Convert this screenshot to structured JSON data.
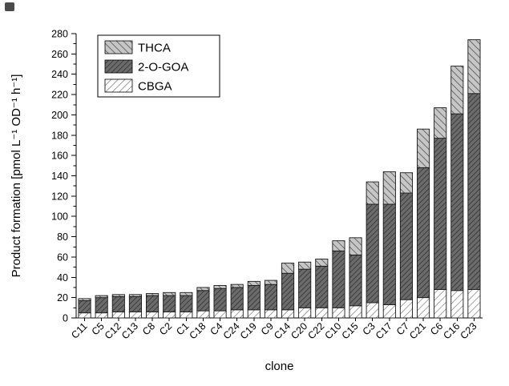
{
  "figure": {
    "background": "#ffffff"
  },
  "chart_data": {
    "type": "bar",
    "stacked": true,
    "title": "",
    "xlabel": "clone",
    "ylabel": "Product formation [pmol L⁻¹ OD⁻¹ h⁻¹]",
    "ylim": [
      0,
      280
    ],
    "ytick_step": 20,
    "ytick_minor_step": 10,
    "grid": false,
    "legend_position": "top-left",
    "legend_order": [
      "THCA",
      "2-O-GOA",
      "CBGA"
    ],
    "categories": [
      "C11",
      "C5",
      "C12",
      "C13",
      "C8",
      "C2",
      "C1",
      "C18",
      "C4",
      "C24",
      "C19",
      "C9",
      "C14",
      "C20",
      "C22",
      "C10",
      "C15",
      "C3",
      "C17",
      "C7",
      "C21",
      "C6",
      "C16",
      "C23"
    ],
    "series": [
      {
        "name": "CBGA",
        "values": [
          5,
          5,
          6,
          6,
          6,
          6,
          6,
          7,
          7,
          8,
          8,
          8,
          8,
          10,
          10,
          10,
          12,
          15,
          13,
          18,
          20,
          28,
          27,
          28
        ]
      },
      {
        "name": "2-O-GOA",
        "values": [
          12,
          15,
          15,
          15,
          16,
          16,
          16,
          20,
          22,
          22,
          24,
          25,
          36,
          38,
          41,
          56,
          50,
          97,
          99,
          105,
          128,
          149,
          174,
          193
        ]
      },
      {
        "name": "THCA",
        "values": [
          2,
          2,
          2,
          2,
          2,
          3,
          3,
          3,
          3,
          3,
          4,
          4,
          10,
          7,
          7,
          10,
          17,
          22,
          32,
          20,
          38,
          30,
          47,
          53
        ]
      }
    ],
    "totals": [
      19,
      22,
      23,
      23,
      24,
      25,
      25,
      30,
      32,
      33,
      36,
      37,
      54,
      55,
      58,
      76,
      79,
      134,
      144,
      143,
      186,
      207,
      248,
      274
    ],
    "colors": {
      "axis": "#000000",
      "bar_outline": "#1a1a1a",
      "cbga_bg": "#ffffff",
      "cbga_line": "#6f6f6f",
      "goa_bg": "#6b6b6b",
      "goa_line": "#383838",
      "thca_bg": "#c6c6c6",
      "thca_line": "#5f5f5f",
      "legend_bg": "#ffffff",
      "legend_border": "#000000"
    }
  }
}
